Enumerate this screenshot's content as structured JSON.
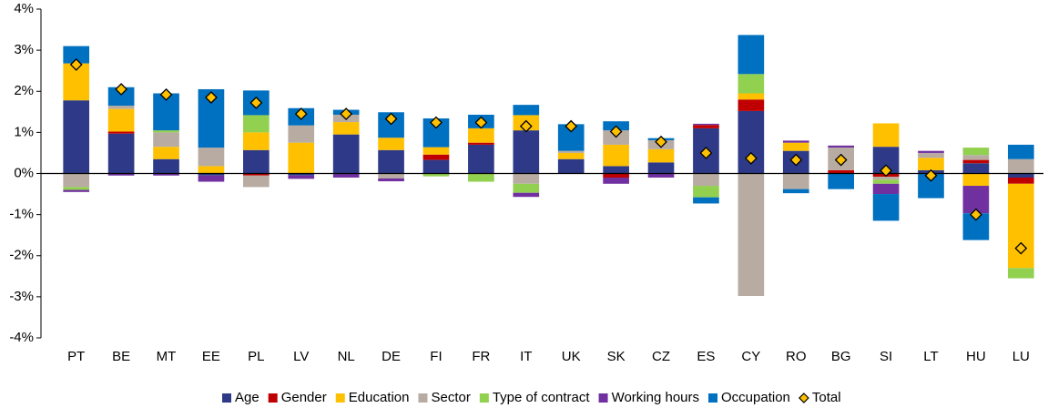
{
  "chart_data": {
    "type": "stacked_bar",
    "categories": [
      "PT",
      "BE",
      "MT",
      "EE",
      "PL",
      "LV",
      "NL",
      "DE",
      "FI",
      "FR",
      "IT",
      "UK",
      "SK",
      "CZ",
      "ES",
      "CY",
      "RO",
      "BG",
      "SI",
      "LT",
      "HU",
      "LU"
    ],
    "series": [
      {
        "name": "Age",
        "color": "#2e3a87",
        "values": [
          1.78,
          0.97,
          0.35,
          -0.05,
          0.57,
          -0.05,
          0.95,
          0.57,
          0.33,
          0.7,
          1.05,
          0.35,
          0.18,
          0.27,
          1.1,
          1.52,
          0.55,
          0,
          0.65,
          0.08,
          0.25,
          -0.1
        ]
      },
      {
        "name": "Gender",
        "color": "#c00000",
        "values": [
          0,
          0.05,
          0,
          0,
          -0.05,
          0,
          0,
          0,
          0.13,
          0.05,
          0,
          0,
          -0.1,
          0,
          0.08,
          0.28,
          0,
          0.08,
          -0.08,
          0,
          0.08,
          -0.15
        ]
      },
      {
        "name": "Education",
        "color": "#ffc000",
        "values": [
          0.9,
          0.55,
          0.3,
          0.18,
          0.43,
          0.75,
          0.3,
          0.3,
          0.18,
          0.35,
          0.37,
          0.15,
          0.52,
          0.32,
          0,
          0.15,
          0.2,
          0,
          0.57,
          0.3,
          -0.3,
          -2.05
        ]
      },
      {
        "name": "Sector",
        "color": "#b7aba2",
        "values": [
          -0.33,
          0.08,
          0.35,
          0.45,
          -0.28,
          0.42,
          0.18,
          -0.12,
          0,
          0,
          -0.25,
          0.05,
          0.35,
          0.22,
          -0.3,
          -2.98,
          -0.38,
          0.55,
          -0.07,
          0.12,
          0.12,
          0.35
        ]
      },
      {
        "name": "Type of contract",
        "color": "#92d050",
        "values": [
          -0.07,
          0,
          0.05,
          0,
          0.42,
          0,
          0,
          0,
          -0.07,
          -0.2,
          -0.22,
          0,
          0,
          0,
          -0.28,
          0.47,
          0,
          0,
          -0.1,
          0,
          0.18,
          -0.25
        ]
      },
      {
        "name": "Working hours",
        "color": "#7030a0",
        "values": [
          -0.05,
          -0.05,
          -0.05,
          -0.15,
          0,
          -0.08,
          -0.1,
          -0.07,
          0,
          0,
          -0.1,
          0,
          -0.15,
          -0.1,
          0.03,
          0,
          0.05,
          0.05,
          -0.25,
          0.05,
          -0.67,
          0
        ]
      },
      {
        "name": "Occupation",
        "color": "#0070c0",
        "values": [
          0.42,
          0.45,
          0.9,
          1.42,
          0.6,
          0.42,
          0.12,
          0.62,
          0.7,
          0.33,
          0.25,
          0.65,
          0.22,
          0.05,
          -0.15,
          0.95,
          -0.1,
          -0.38,
          -0.65,
          -0.6,
          -0.65,
          0.35
        ]
      },
      {
        "name": "Total",
        "color": "#ffc000",
        "mark": "diamond",
        "values": [
          2.65,
          2.05,
          1.92,
          1.85,
          1.72,
          1.45,
          1.45,
          1.33,
          1.24,
          1.24,
          1.15,
          1.15,
          1.02,
          0.77,
          0.5,
          0.37,
          0.33,
          0.33,
          0.07,
          -0.05,
          -1.0,
          -1.82
        ]
      }
    ],
    "ylim": [
      -4,
      4
    ],
    "yticks": [
      {
        "value": -4,
        "label": "-4%"
      },
      {
        "value": -3,
        "label": "-3%"
      },
      {
        "value": -2,
        "label": "-2%"
      },
      {
        "value": -1,
        "label": "-1%"
      },
      {
        "value": 0,
        "label": "0%"
      },
      {
        "value": 1,
        "label": "1%"
      },
      {
        "value": 2,
        "label": "2%"
      },
      {
        "value": 3,
        "label": "3%"
      },
      {
        "value": 4,
        "label": "4%"
      }
    ],
    "grid": false,
    "legend": "bottom"
  }
}
